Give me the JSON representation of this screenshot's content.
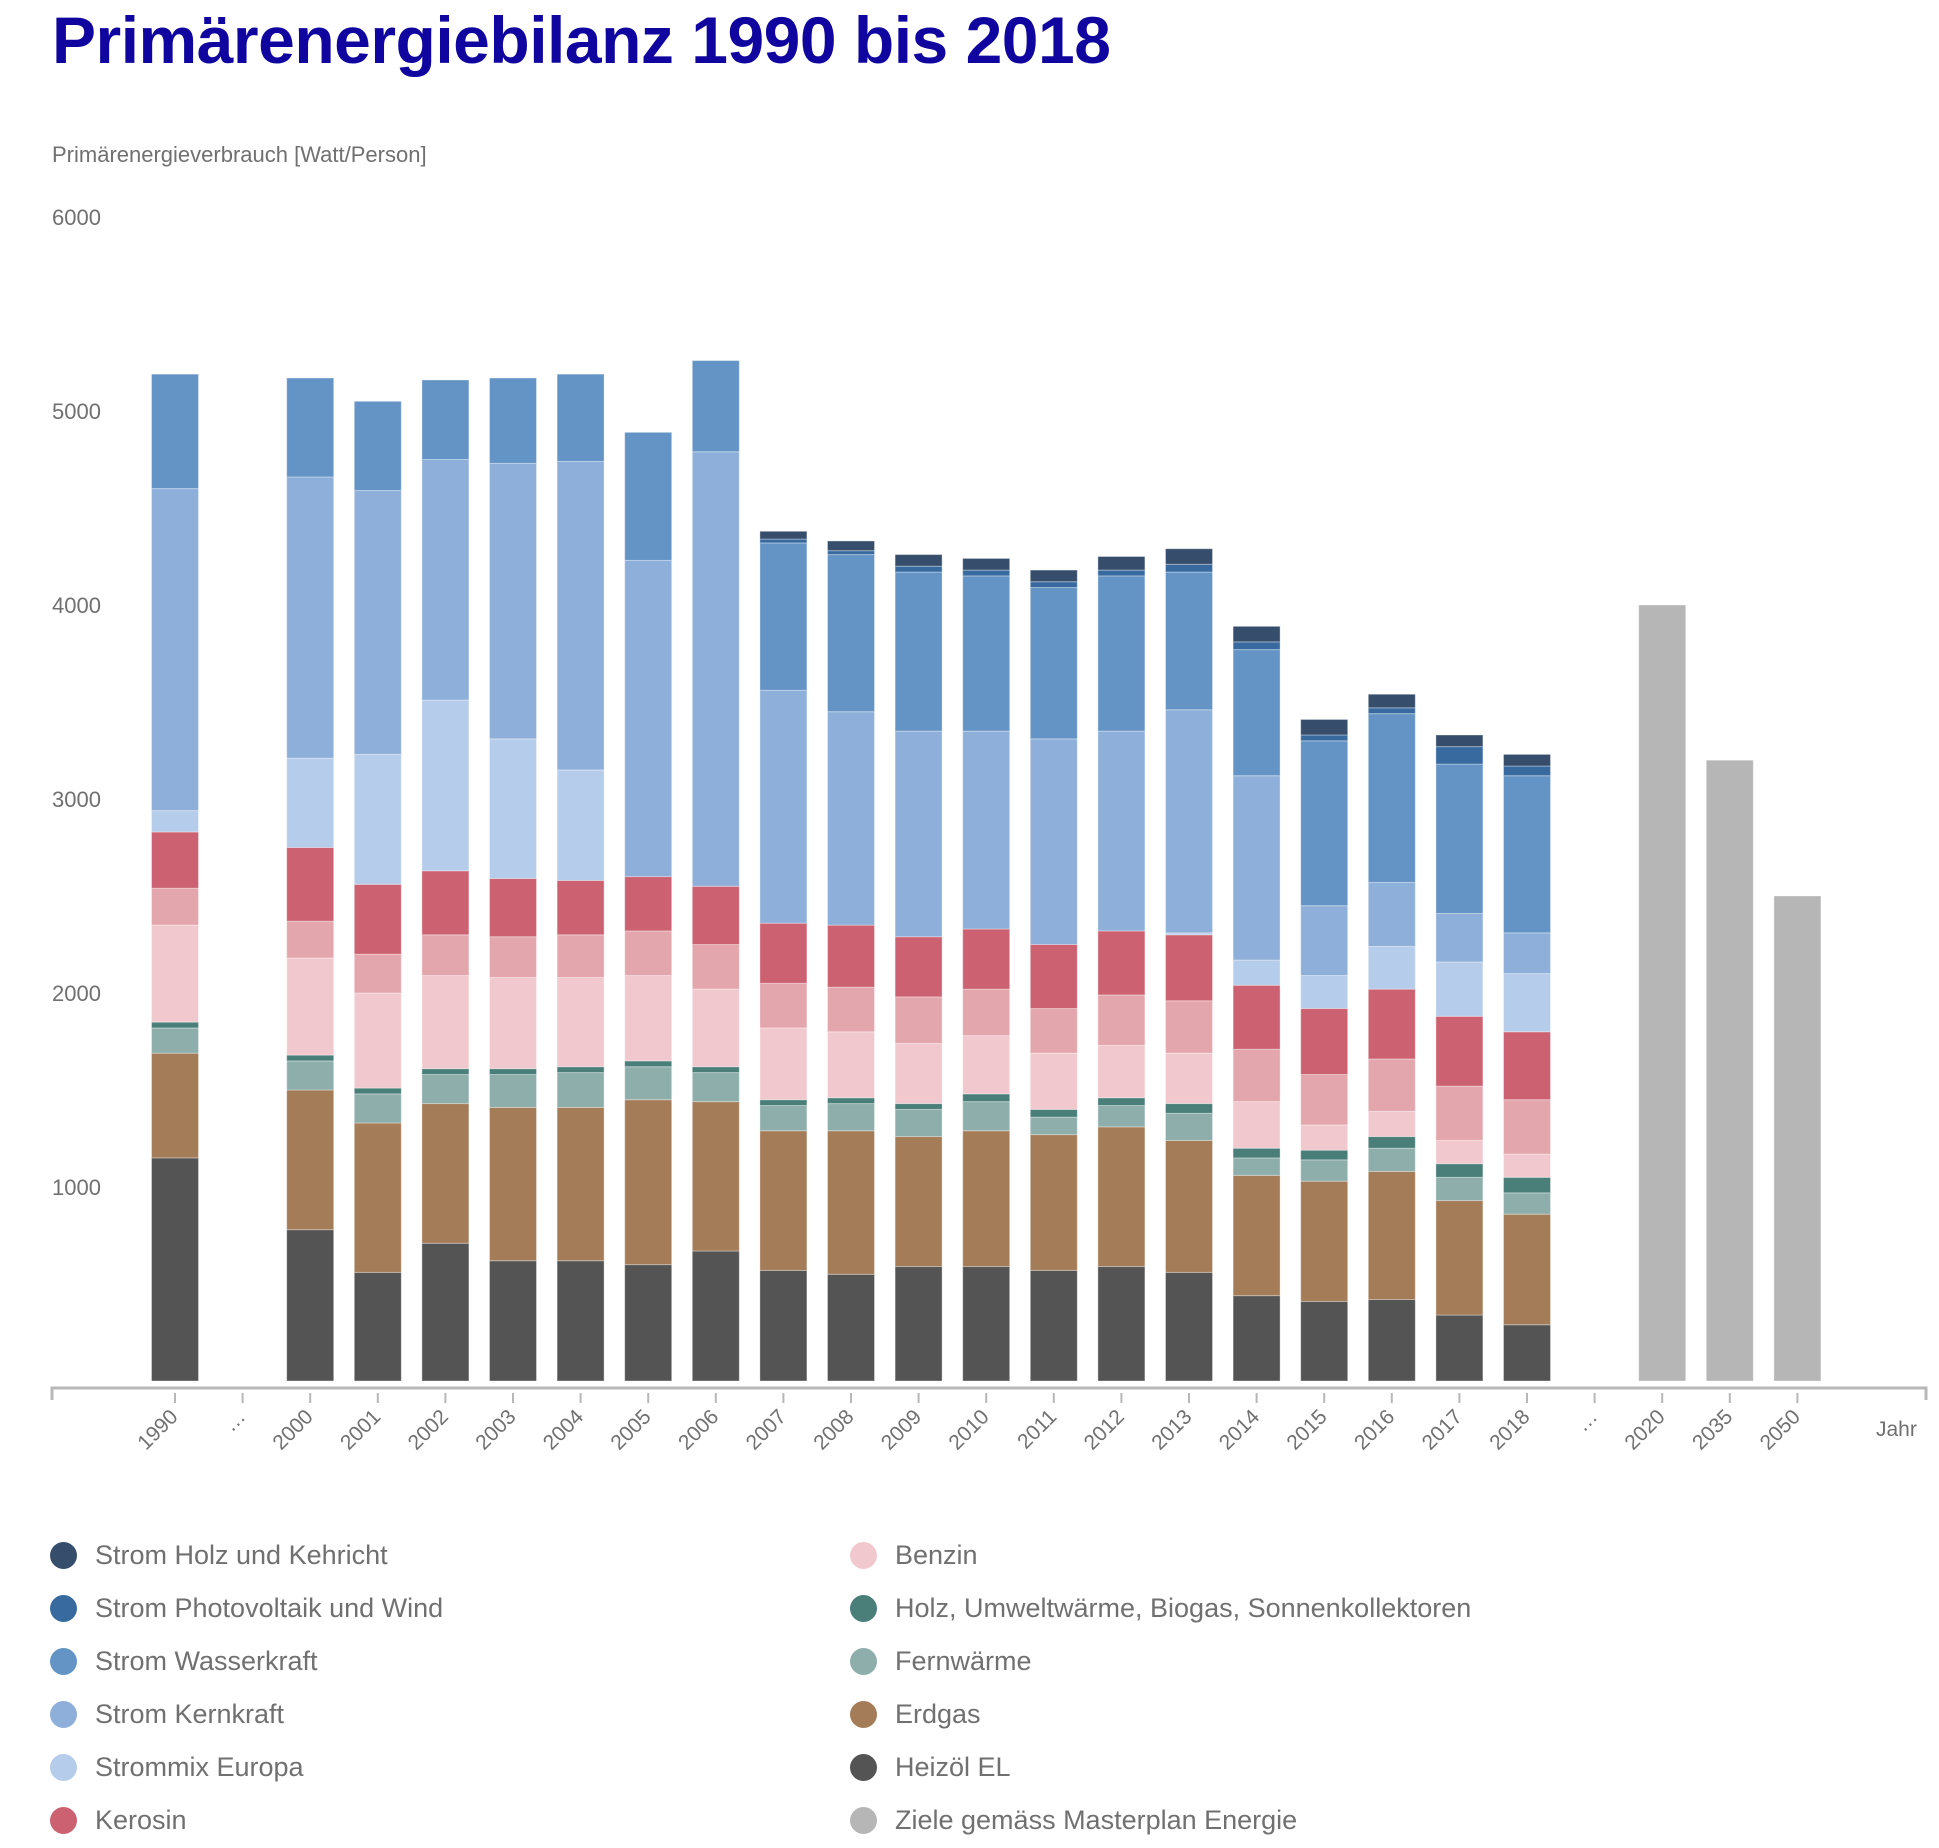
{
  "chart_data": {
    "type": "bar",
    "stacked": true,
    "title": "Primärenergiebilanz 1990 bis 2018",
    "ylabel": "Primärenergieverbrauch [Watt/Person]",
    "xlabel": "Jahr",
    "ylim": [
      0,
      6000
    ],
    "yticks": [
      1000,
      2000,
      3000,
      4000,
      5000,
      6000
    ],
    "grid": false,
    "legend_position": "bottom",
    "categories": [
      "1990",
      "…",
      "2000",
      "2001",
      "2002",
      "2003",
      "2004",
      "2005",
      "2006",
      "2007",
      "2008",
      "2009",
      "2010",
      "2011",
      "2012",
      "2013",
      "2014",
      "2015",
      "2016",
      "2017",
      "2018",
      "…",
      "2020",
      "2035",
      "2050"
    ],
    "series": [
      {
        "name": "Heizöl EL",
        "color": "#545454",
        "values": [
          1150,
          null,
          780,
          560,
          710,
          620,
          620,
          600,
          670,
          570,
          550,
          590,
          590,
          570,
          590,
          560,
          440,
          410,
          420,
          340,
          290,
          null,
          null,
          null,
          null
        ]
      },
      {
        "name": "Erdgas",
        "color": "#a47c58",
        "values": [
          540,
          null,
          720,
          770,
          720,
          790,
          790,
          850,
          770,
          720,
          740,
          670,
          700,
          700,
          720,
          680,
          620,
          620,
          660,
          590,
          570,
          null,
          null,
          null,
          null
        ]
      },
      {
        "name": "Fernwärme",
        "color": "#8eaeac",
        "values": [
          130,
          null,
          150,
          150,
          150,
          170,
          180,
          170,
          150,
          130,
          140,
          140,
          150,
          90,
          110,
          140,
          90,
          110,
          120,
          120,
          110,
          null,
          null,
          null,
          null
        ]
      },
      {
        "name": "Holz, Umweltwärme, Biogas, Sonnenkollektoren",
        "color": "#4a7e79",
        "values": [
          30,
          null,
          30,
          30,
          30,
          30,
          30,
          30,
          30,
          30,
          30,
          30,
          40,
          40,
          40,
          50,
          50,
          50,
          60,
          70,
          80,
          null,
          null,
          null,
          null
        ]
      },
      {
        "name": "Benzin",
        "color": "#f1c8ce",
        "values": [
          500,
          null,
          500,
          490,
          480,
          470,
          460,
          440,
          400,
          370,
          340,
          310,
          300,
          290,
          270,
          260,
          240,
          130,
          130,
          120,
          120,
          null,
          null,
          null,
          null
        ]
      },
      {
        "name": "",
        "color": "#e4a6ad",
        "values": [
          190,
          null,
          190,
          200,
          210,
          210,
          220,
          230,
          230,
          230,
          230,
          240,
          240,
          230,
          260,
          270,
          270,
          260,
          270,
          280,
          280,
          null,
          null,
          null,
          null
        ]
      },
      {
        "name": "Kerosin",
        "color": "#cc6271",
        "values": [
          290,
          null,
          380,
          360,
          330,
          300,
          280,
          280,
          300,
          310,
          320,
          310,
          310,
          330,
          330,
          340,
          330,
          340,
          360,
          360,
          350,
          null,
          null,
          null,
          null
        ]
      },
      {
        "name": "Strommix Europa",
        "color": "#b6cceb",
        "values": [
          110,
          null,
          460,
          670,
          880,
          720,
          570,
          0,
          0,
          0,
          0,
          0,
          0,
          0,
          0,
          10,
          130,
          170,
          220,
          280,
          300,
          null,
          null,
          null,
          null
        ]
      },
      {
        "name": "Strom Kernkraft",
        "color": "#8eafd9",
        "values": [
          1660,
          null,
          1450,
          1360,
          1240,
          1420,
          1590,
          1630,
          2240,
          1200,
          1100,
          1060,
          1020,
          1060,
          1030,
          1150,
          950,
          360,
          330,
          250,
          210,
          null,
          null,
          null,
          null
        ]
      },
      {
        "name": "Strom Wasserkraft",
        "color": "#6494c5",
        "values": [
          590,
          null,
          510,
          460,
          410,
          440,
          450,
          660,
          470,
          760,
          810,
          820,
          800,
          780,
          800,
          710,
          650,
          850,
          870,
          770,
          810,
          null,
          null,
          null,
          null
        ]
      },
      {
        "name": "Strom Photovoltaik und Wind",
        "color": "#386aa0",
        "values": [
          0,
          null,
          0,
          0,
          0,
          0,
          0,
          0,
          0,
          20,
          20,
          30,
          30,
          30,
          30,
          40,
          40,
          30,
          30,
          90,
          50,
          null,
          null,
          null,
          null
        ]
      },
      {
        "name": "Strom Holz und Kehricht",
        "color": "#364e6c",
        "values": [
          0,
          null,
          0,
          0,
          0,
          0,
          0,
          0,
          0,
          40,
          50,
          60,
          60,
          60,
          70,
          80,
          80,
          80,
          70,
          60,
          60,
          null,
          null,
          null,
          null
        ]
      },
      {
        "name": "Ziele gemäss Masterplan Energie",
        "color": "#b6b6b6",
        "values": [
          null,
          null,
          null,
          null,
          null,
          null,
          null,
          null,
          null,
          null,
          null,
          null,
          null,
          null,
          null,
          null,
          null,
          null,
          null,
          null,
          null,
          null,
          4000,
          3200,
          2500
        ]
      }
    ]
  },
  "legend": {
    "left": [
      {
        "label": "Strom Holz und Kehricht",
        "color": "#364e6c"
      },
      {
        "label": "Strom Photovoltaik und Wind",
        "color": "#386aa0"
      },
      {
        "label": "Strom Wasserkraft",
        "color": "#6494c5"
      },
      {
        "label": "Strom Kernkraft",
        "color": "#8eafd9"
      },
      {
        "label": "Strommix Europa",
        "color": "#b6cceb"
      },
      {
        "label": "Kerosin",
        "color": "#cc6271"
      }
    ],
    "right": [
      {
        "label": "Benzin",
        "color": "#f1c8ce"
      },
      {
        "label": "Holz, Umweltwärme, Biogas, Sonnenkollektoren",
        "color": "#4a7e79"
      },
      {
        "label": "Fernwärme",
        "color": "#8eaeac"
      },
      {
        "label": "Erdgas",
        "color": "#a47c58"
      },
      {
        "label": "Heizöl EL",
        "color": "#545454"
      },
      {
        "label": "Ziele gemäss Masterplan Energie",
        "color": "#b6b6b6"
      }
    ]
  },
  "colors": {
    "title": "#10069f",
    "text": "#707070",
    "axis": "#b8b8b8"
  }
}
